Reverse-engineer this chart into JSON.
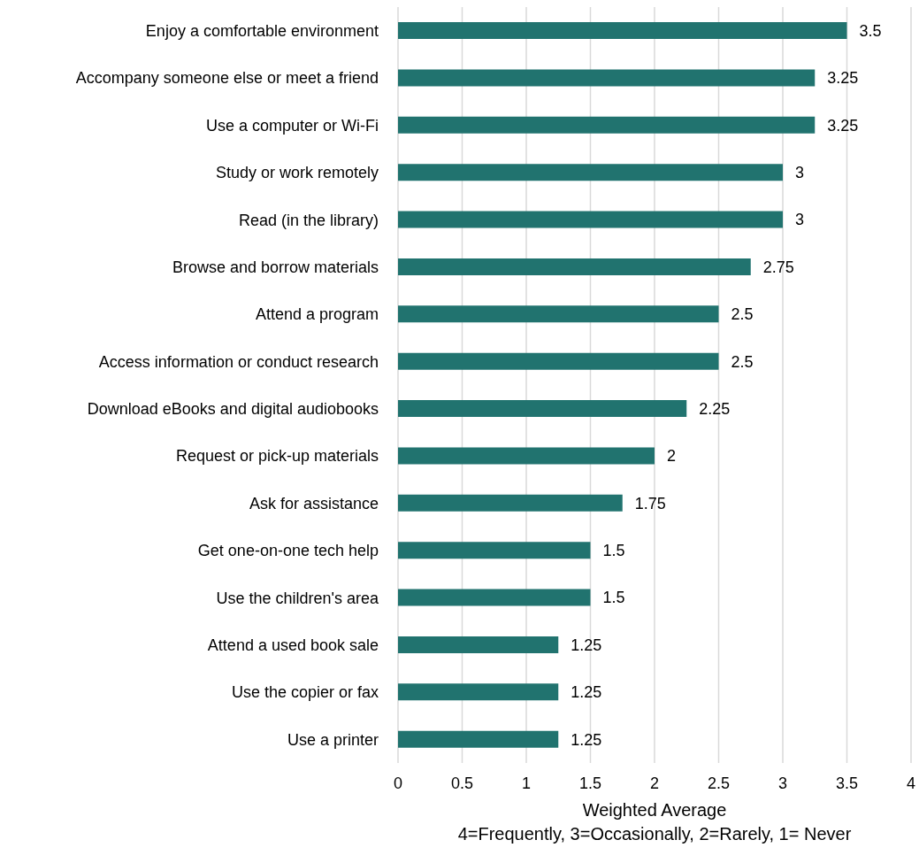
{
  "chart_data": {
    "type": "bar",
    "orientation": "horizontal",
    "xlabel": "Weighted Average",
    "annotations": [
      "4=Frequently, 3=Occasionally, 2=Rarely, 1= Never"
    ],
    "categories": [
      "Enjoy a comfortable environment",
      "Accompany someone else or meet a friend",
      "Use a computer or Wi-Fi",
      "Study or work remotely",
      "Read (in the library)",
      "Browse and borrow materials",
      "Attend a program",
      "Access information or conduct research",
      "Download eBooks and digital audiobooks",
      "Request or pick-up materials",
      "Ask for assistance",
      "Get one-on-one tech help",
      "Use the children's area",
      "Attend a used book sale",
      "Use the copier or fax",
      "Use a printer"
    ],
    "values": [
      3.5,
      3.25,
      3.25,
      3,
      3,
      2.75,
      2.5,
      2.5,
      2.25,
      2,
      1.75,
      1.5,
      1.5,
      1.25,
      1.25,
      1.25
    ],
    "color": "#21736f",
    "xlim": [
      0,
      4
    ],
    "xticks": [
      0,
      0.5,
      1,
      1.5,
      2,
      2.5,
      3,
      3.5,
      4
    ],
    "grid": "x",
    "data_labels": true,
    "legend": false
  }
}
